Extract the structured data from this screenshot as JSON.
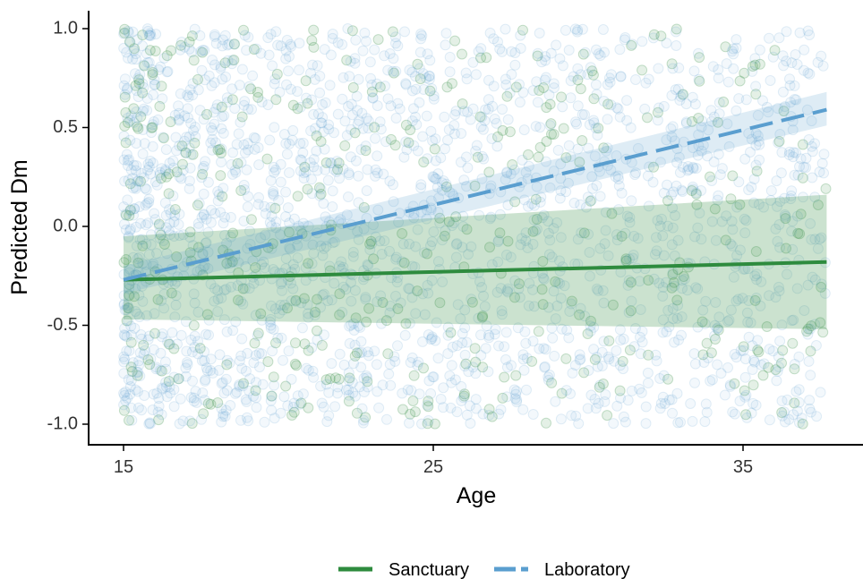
{
  "chart_data": {
    "type": "scatter",
    "title": "",
    "xlabel": "Age",
    "ylabel": "Predicted Dm",
    "xlim": [
      14,
      38.5
    ],
    "ylim": [
      -1.1,
      1.1
    ],
    "x_ticks": [
      15,
      25,
      35
    ],
    "x_tick_labels": [
      "15",
      "25",
      "35"
    ],
    "y_ticks": [
      -1.0,
      -0.5,
      0.0,
      0.5,
      1.0
    ],
    "y_tick_labels": [
      "-1.0",
      "-0.5",
      "0.0",
      "0.5",
      "1.0"
    ],
    "grid": false,
    "legend_position": "bottom",
    "series": [
      {
        "name": "Sanctuary",
        "color": "#2e8b3e",
        "line_style": "solid",
        "fit_line": {
          "x": [
            15,
            37.7
          ],
          "y": [
            -0.27,
            -0.18
          ]
        },
        "ci_band": {
          "x": [
            15,
            37.7
          ],
          "lower": [
            -0.47,
            -0.52
          ],
          "upper": [
            -0.05,
            0.16
          ]
        },
        "point_count": 450,
        "point_seed": 7
      },
      {
        "name": "Laboratory",
        "color": "#5a9ecf",
        "line_style": "dashed",
        "fit_line": {
          "x": [
            15,
            37.7
          ],
          "y": [
            -0.27,
            0.59
          ]
        },
        "ci_band": {
          "x": [
            15,
            37.7
          ],
          "lower": [
            -0.34,
            0.51
          ],
          "upper": [
            -0.2,
            0.68
          ]
        },
        "point_count": 2000,
        "point_seed": 13
      }
    ],
    "point_x_range": [
      15,
      37.7
    ],
    "point_y_range": [
      -1.0,
      1.0
    ]
  }
}
